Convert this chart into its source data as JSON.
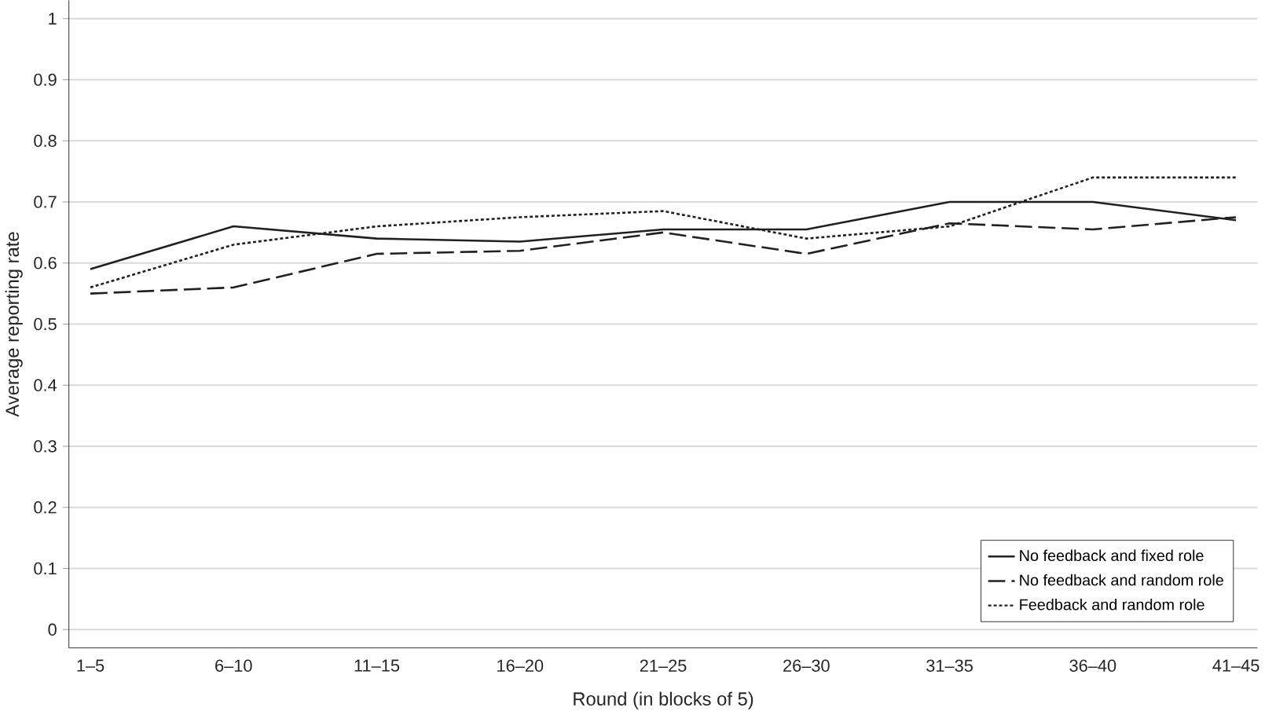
{
  "chart_data": {
    "type": "line",
    "xlabel": "Round (in blocks of 5)",
    "ylabel": "Average reporting rate",
    "categories": [
      "1–5",
      "6–10",
      "11–15",
      "16–20",
      "21–25",
      "26–30",
      "31–35",
      "36–40",
      "41–45"
    ],
    "series": [
      {
        "name": "No feedback and fixed role",
        "color": "#231f20",
        "line_style": "solid",
        "values": [
          0.59,
          0.66,
          0.64,
          0.635,
          0.655,
          0.655,
          0.7,
          0.7,
          0.67
        ]
      },
      {
        "name": "No feedback and random role",
        "color": "#231f20",
        "line_style": "dashed",
        "values": [
          0.55,
          0.56,
          0.615,
          0.62,
          0.65,
          0.615,
          0.665,
          0.655,
          0.675
        ]
      },
      {
        "name": "Feedback and random role",
        "color": "#231f20",
        "line_style": "dotted",
        "values": [
          0.56,
          0.63,
          0.66,
          0.675,
          0.685,
          0.64,
          0.66,
          0.74,
          0.74
        ]
      }
    ],
    "ylim": [
      -0.03,
      1.03
    ],
    "yticks": [
      0,
      0.1,
      0.2,
      0.3,
      0.4,
      0.5,
      0.6,
      0.7,
      0.8,
      0.9,
      1
    ],
    "grid": "y",
    "legend": "bottom right",
    "marker": "none"
  }
}
